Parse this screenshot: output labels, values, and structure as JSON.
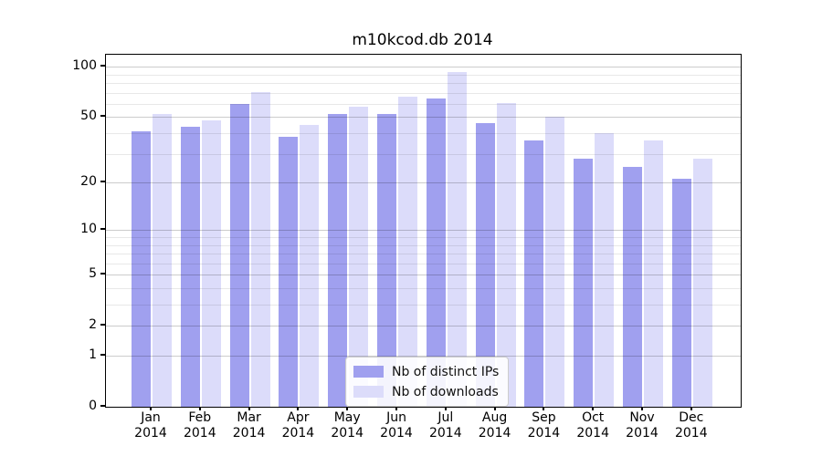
{
  "chart_data": {
    "type": "bar",
    "title": "m10kcod.db 2014",
    "categories": [
      "Jan",
      "Feb",
      "Mar",
      "Apr",
      "May",
      "Jun",
      "Jul",
      "Aug",
      "Sep",
      "Oct",
      "Nov",
      "Dec"
    ],
    "category_year": "2014",
    "series": [
      {
        "name": "Nb of distinct IPs",
        "color": "#a0a0ef",
        "values": [
          41,
          44,
          60,
          38,
          52,
          52,
          65,
          46,
          36,
          28,
          25,
          21
        ]
      },
      {
        "name": "Nb of downloads",
        "color": "#dcdcfa",
        "values": [
          52,
          48,
          71,
          45,
          58,
          66,
          93,
          61,
          50,
          40,
          36,
          28
        ]
      }
    ],
    "yscale": "log10(1+x)",
    "ylim": [
      0,
      118
    ],
    "y_tick_labels": [
      0,
      1,
      2,
      5,
      10,
      20,
      50,
      100
    ],
    "y_minor_gridlines": [
      3,
      4,
      6,
      7,
      8,
      9,
      30,
      40,
      60,
      70,
      80,
      90
    ],
    "grid": true,
    "legend_position": "lower center",
    "colors": {
      "grid_major": "rgba(0,0,0,0.20)",
      "grid_minor": "rgba(0,0,0,0.09)",
      "axis": "#000000",
      "background": "#ffffff"
    }
  }
}
